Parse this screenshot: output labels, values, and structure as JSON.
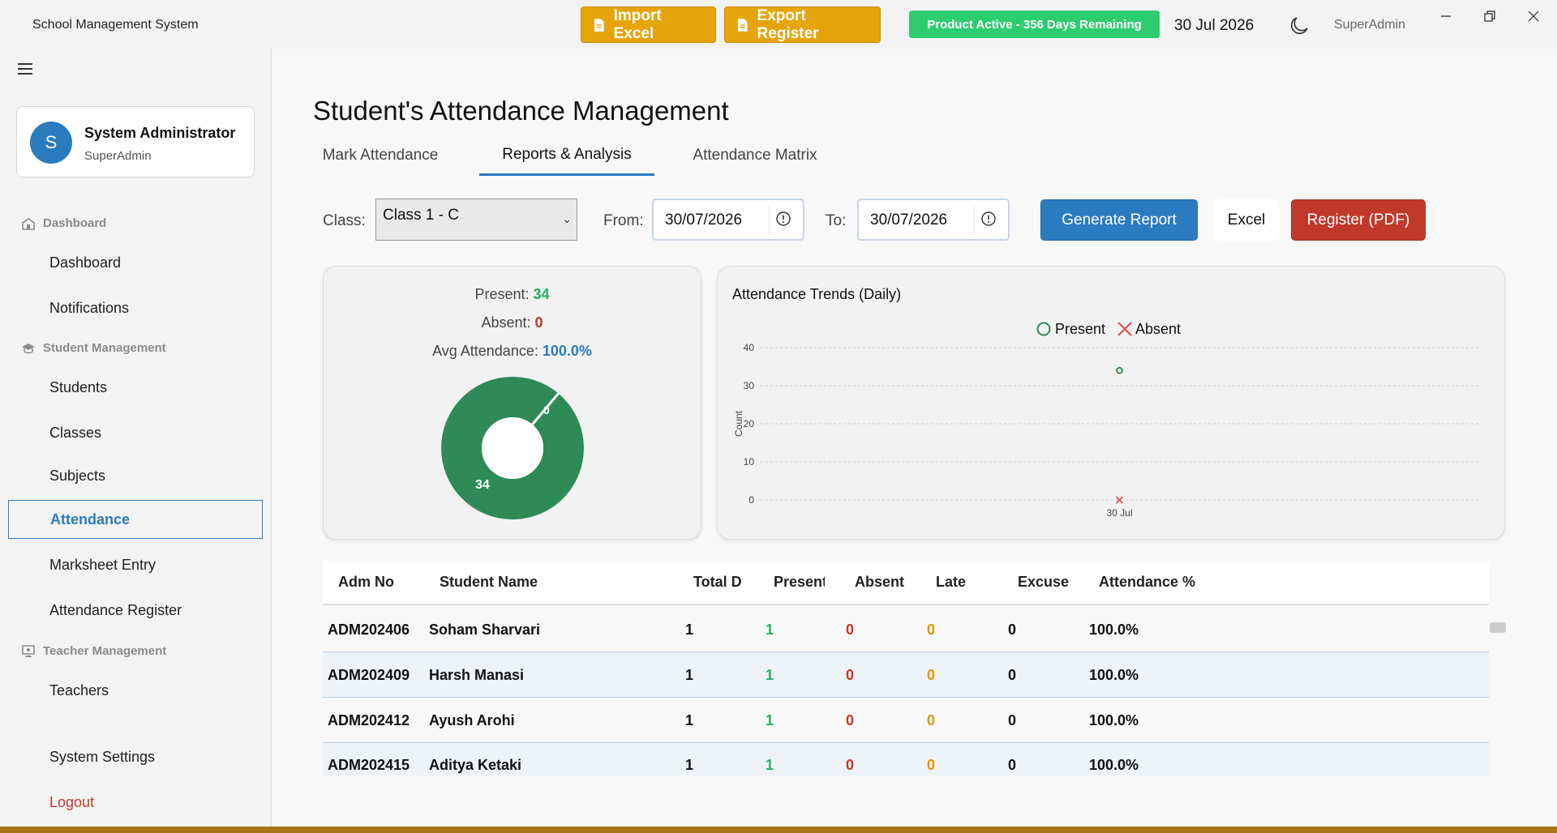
{
  "titlebar": {
    "app_title": "School Management System",
    "import_label": "Import Excel",
    "export_label": "Export Register",
    "product_status": "Product Active - 356 Days Remaining",
    "date": "30 Jul 2026",
    "user": "SuperAdmin",
    "theme_icon": "moon-icon"
  },
  "sidebar": {
    "profile": {
      "initial": "S",
      "name": "System Administrator",
      "role": "SuperAdmin"
    },
    "sections": {
      "dashboard": "Dashboard",
      "student_mgmt": "Student Management",
      "teacher_mgmt": "Teacher Management"
    },
    "items": {
      "dashboard": "Dashboard",
      "notifications": "Notifications",
      "students": "Students",
      "classes": "Classes",
      "subjects": "Subjects",
      "attendance": "Attendance",
      "marksheet": "Marksheet Entry",
      "register": "Attendance Register",
      "teachers": "Teachers",
      "settings": "System Settings",
      "logout": "Logout"
    }
  },
  "main": {
    "title": "Student's Attendance Management",
    "tabs": [
      "Mark Attendance",
      "Reports & Analysis",
      "Attendance Matrix"
    ],
    "active_tab": "Reports & Analysis",
    "filters": {
      "class_label": "Class:",
      "class_value": "Class 1 - C",
      "from_label": "From:",
      "from_value": "30/07/2026",
      "to_label": "To:",
      "to_value": "30/07/2026"
    },
    "buttons": {
      "generate": "Generate Report",
      "excel": "Excel",
      "register_pdf": "Register (PDF)"
    },
    "summary": {
      "present_label": "Present:",
      "present_value": "34",
      "absent_label": "Absent:",
      "absent_value": "0",
      "avg_label": "Avg Attendance:",
      "avg_value": "100.0%"
    },
    "table": {
      "headers": [
        "Adm No",
        "Student Name",
        "Total D",
        "Present",
        "Absent",
        "Late",
        "Excuse",
        "Attendance %"
      ],
      "rows": [
        [
          "ADM202406",
          "Soham Sharvari",
          "1",
          "1",
          "0",
          "0",
          "0",
          "100.0%"
        ],
        [
          "ADM202409",
          "Harsh Manasi",
          "1",
          "1",
          "0",
          "0",
          "0",
          "100.0%"
        ],
        [
          "ADM202412",
          "Ayush Arohi",
          "1",
          "1",
          "0",
          "0",
          "0",
          "100.0%"
        ],
        [
          "ADM202415",
          "Aditya Ketaki",
          "1",
          "1",
          "0",
          "0",
          "0",
          "100.0%"
        ]
      ]
    }
  },
  "colors": {
    "accent": "#2b7bbf",
    "gold": "#e5a50a",
    "active_green": "#2ecc71",
    "present_green": "#2e8b57",
    "absent_red": "#c0392b",
    "late_orange": "#e69500"
  },
  "chart_data": [
    {
      "type": "pie",
      "labels": [
        "Present",
        "Absent"
      ],
      "values": [
        34,
        0
      ],
      "colors": [
        "#2e8b57",
        "#c0392b"
      ],
      "donut": true
    },
    {
      "type": "scatter",
      "title": "Attendance Trends (Daily)",
      "xlabel": "",
      "ylabel": "Count",
      "categories": [
        "30 Jul"
      ],
      "ylim": [
        0,
        40
      ],
      "yticks": [
        0,
        10,
        20,
        30,
        40
      ],
      "grid": true,
      "legend": "top-center",
      "series": [
        {
          "name": "Present",
          "marker": "circle",
          "color": "#2e8b57",
          "values": [
            34
          ]
        },
        {
          "name": "Absent",
          "marker": "x",
          "color": "#d9534f",
          "values": [
            0
          ]
        }
      ]
    }
  ]
}
